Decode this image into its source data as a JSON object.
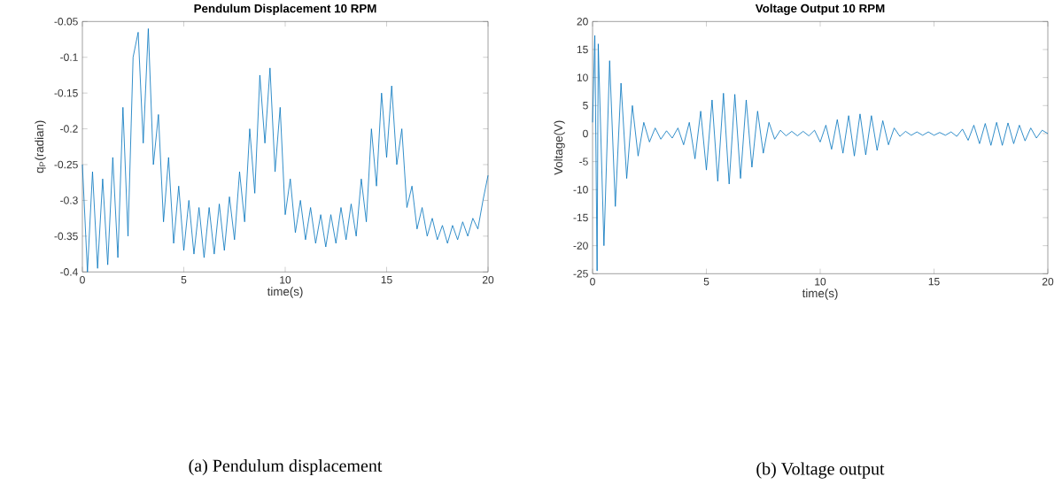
{
  "chart_data": [
    {
      "type": "line",
      "title": "Pendulum Displacement 10 RPM",
      "xlabel": "time(s)",
      "ylabel": "q$_{P}$(radian)",
      "color": "#0072bd",
      "xlim": [
        0,
        20
      ],
      "ylim": [
        -0.4,
        -0.05
      ],
      "xticks": [
        0,
        5,
        10,
        15,
        20
      ],
      "yticks": [
        -0.4,
        -0.35,
        -0.3,
        -0.25,
        -0.2,
        -0.15,
        -0.1,
        -0.05
      ],
      "annotations": [
        "(a)  Pendulum displacement"
      ],
      "x": [
        0,
        0.25,
        0.5,
        0.75,
        1,
        1.25,
        1.5,
        1.75,
        2,
        2.25,
        2.5,
        2.75,
        3,
        3.25,
        3.5,
        3.75,
        4,
        4.25,
        4.5,
        4.75,
        5,
        5.25,
        5.5,
        5.75,
        6,
        6.25,
        6.5,
        6.75,
        7,
        7.25,
        7.5,
        7.75,
        8,
        8.25,
        8.5,
        8.75,
        9,
        9.25,
        9.5,
        9.75,
        10,
        10.25,
        10.5,
        10.75,
        11,
        11.25,
        11.5,
        11.75,
        12,
        12.25,
        12.5,
        12.75,
        13,
        13.25,
        13.5,
        13.75,
        14,
        14.25,
        14.5,
        14.75,
        15,
        15.25,
        15.5,
        15.75,
        16,
        16.25,
        16.5,
        16.75,
        17,
        17.25,
        17.5,
        17.75,
        18,
        18.25,
        18.5,
        18.75,
        19,
        19.25,
        19.5,
        19.75,
        20
      ],
      "values": [
        -0.25,
        -0.4,
        -0.26,
        -0.395,
        -0.27,
        -0.39,
        -0.24,
        -0.38,
        -0.17,
        -0.35,
        -0.1,
        -0.065,
        -0.22,
        -0.06,
        -0.25,
        -0.18,
        -0.33,
        -0.24,
        -0.36,
        -0.28,
        -0.37,
        -0.3,
        -0.375,
        -0.31,
        -0.38,
        -0.31,
        -0.375,
        -0.305,
        -0.37,
        -0.295,
        -0.355,
        -0.26,
        -0.33,
        -0.2,
        -0.29,
        -0.125,
        -0.22,
        -0.115,
        -0.26,
        -0.17,
        -0.32,
        -0.27,
        -0.345,
        -0.3,
        -0.355,
        -0.31,
        -0.36,
        -0.32,
        -0.365,
        -0.32,
        -0.36,
        -0.31,
        -0.355,
        -0.305,
        -0.35,
        -0.27,
        -0.33,
        -0.2,
        -0.28,
        -0.15,
        -0.24,
        -0.14,
        -0.25,
        -0.2,
        -0.31,
        -0.28,
        -0.34,
        -0.31,
        -0.35,
        -0.325,
        -0.355,
        -0.335,
        -0.36,
        -0.335,
        -0.355,
        -0.33,
        -0.35,
        -0.325,
        -0.34,
        -0.3,
        -0.265
      ]
    },
    {
      "type": "line",
      "title": "Voltage Output 10 RPM",
      "xlabel": "time(s)",
      "ylabel": "Voltage(V)",
      "color": "#0072bd",
      "xlim": [
        0,
        20
      ],
      "ylim": [
        -25,
        20
      ],
      "xticks": [
        0,
        5,
        10,
        15,
        20
      ],
      "yticks": [
        -25,
        -20,
        -15,
        -10,
        -5,
        0,
        5,
        10,
        15,
        20
      ],
      "annotations": [
        "(b)  Voltage output"
      ],
      "x": [
        0,
        0.1,
        0.2,
        0.25,
        0.5,
        0.75,
        1,
        1.25,
        1.5,
        1.75,
        2,
        2.25,
        2.5,
        2.75,
        3,
        3.25,
        3.5,
        3.75,
        4,
        4.25,
        4.5,
        4.75,
        5,
        5.25,
        5.5,
        5.75,
        6,
        6.25,
        6.5,
        6.75,
        7,
        7.25,
        7.5,
        7.75,
        8,
        8.25,
        8.5,
        8.75,
        9,
        9.25,
        9.5,
        9.75,
        10,
        10.25,
        10.5,
        10.75,
        11,
        11.25,
        11.5,
        11.75,
        12,
        12.25,
        12.5,
        12.75,
        13,
        13.25,
        13.5,
        13.75,
        14,
        14.25,
        14.5,
        14.75,
        15,
        15.25,
        15.5,
        15.75,
        16,
        16.25,
        16.5,
        16.75,
        17,
        17.25,
        17.5,
        17.75,
        18,
        18.25,
        18.5,
        18.75,
        19,
        19.25,
        19.5,
        19.75,
        20
      ],
      "values": [
        2,
        17.5,
        -24.5,
        16,
        -20,
        13,
        -13,
        9,
        -8,
        5,
        -4,
        2,
        -1.5,
        1,
        -1,
        0.5,
        -0.8,
        1,
        -2,
        2,
        -4.5,
        4,
        -6.5,
        6,
        -8.5,
        7.2,
        -9,
        7,
        -8,
        6,
        -6,
        4,
        -3.5,
        2,
        -1,
        0.6,
        -0.4,
        0.4,
        -0.4,
        0.4,
        -0.4,
        0.6,
        -1.5,
        1.5,
        -2.8,
        2.5,
        -3.5,
        3.2,
        -4,
        3.5,
        -3.8,
        3.2,
        -3,
        2.3,
        -2,
        1,
        -0.5,
        0.4,
        -0.3,
        0.3,
        -0.3,
        0.3,
        -0.3,
        0.2,
        -0.3,
        0.3,
        -0.5,
        0.8,
        -1.2,
        1.5,
        -1.8,
        1.8,
        -2.1,
        2,
        -2.1,
        1.9,
        -1.8,
        1.5,
        -1.3,
        1,
        -0.8,
        0.6,
        0
      ]
    }
  ]
}
